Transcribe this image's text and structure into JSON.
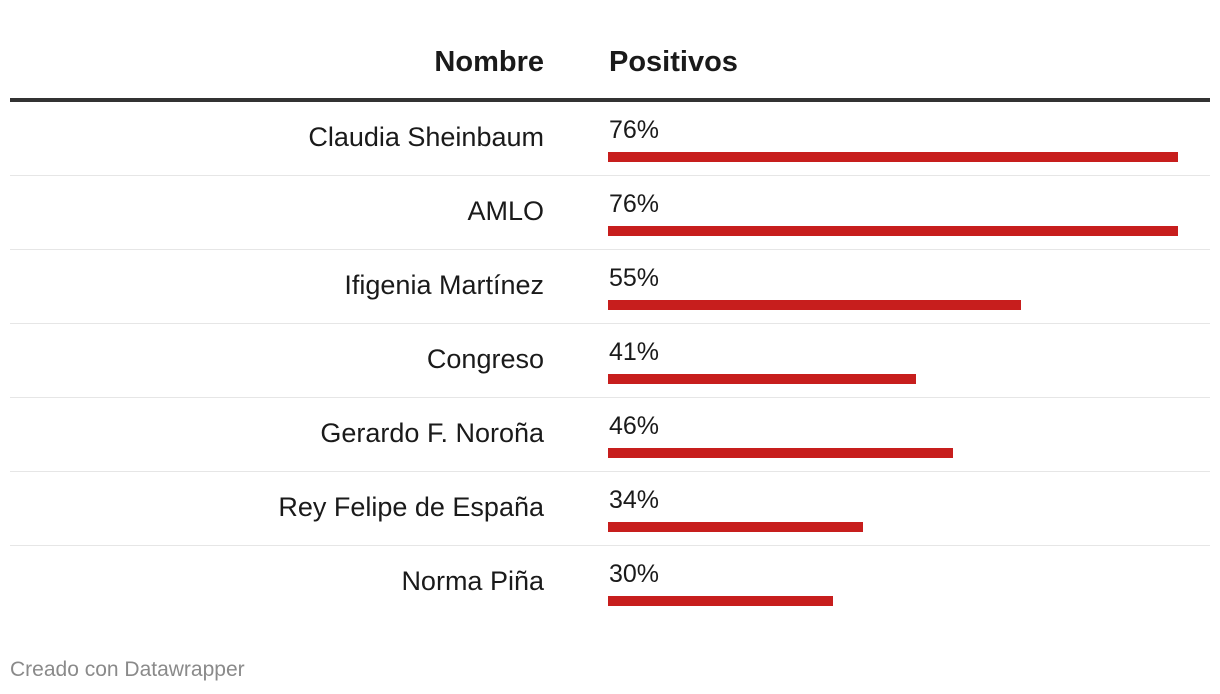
{
  "chart_data": {
    "type": "bar",
    "orientation": "horizontal",
    "columns": {
      "name_header": "Nombre",
      "value_header": "Positivos"
    },
    "categories": [
      "Claudia Sheinbaum",
      "AMLO",
      "Ifigenia Martínez",
      "Congreso",
      "Gerardo F. Noroña",
      "Rey Felipe de España",
      "Norma Piña"
    ],
    "values": [
      76,
      76,
      55,
      41,
      46,
      34,
      30
    ],
    "value_labels": [
      "76%",
      "76%",
      "55%",
      "41%",
      "46%",
      "34%",
      "30%"
    ],
    "xlim": [
      0,
      76
    ],
    "bar_color": "#c71e1d",
    "grid": false,
    "footer": "Creado con Datawrapper"
  }
}
